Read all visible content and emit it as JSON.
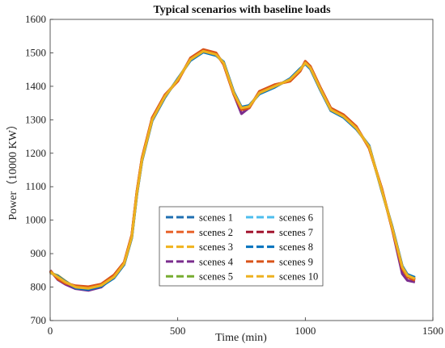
{
  "chart_data": {
    "type": "line",
    "title": "Typical scenarios with baseline loads",
    "xlabel": "Time (min)",
    "ylabel": "Power（10000 KW）",
    "xlim": [
      0,
      1500
    ],
    "ylim": [
      700,
      1600
    ],
    "x_ticks": [
      0,
      500,
      1000,
      1500
    ],
    "y_ticks": [
      700,
      800,
      900,
      1000,
      1100,
      1200,
      1300,
      1400,
      1500,
      1600
    ],
    "grid": false,
    "legend_position": "lower-center",
    "x": [
      0,
      30,
      60,
      100,
      150,
      200,
      250,
      290,
      320,
      340,
      360,
      400,
      450,
      500,
      550,
      600,
      650,
      680,
      720,
      750,
      780,
      820,
      880,
      940,
      980,
      1000,
      1020,
      1060,
      1100,
      1150,
      1200,
      1250,
      1300,
      1340,
      1380,
      1400,
      1430
    ],
    "series": [
      {
        "name": "scenes 1",
        "color": "#1f6fb2",
        "values": [
          845,
          830,
          815,
          800,
          795,
          805,
          830,
          870,
          950,
          1080,
          1180,
          1300,
          1370,
          1420,
          1480,
          1505,
          1495,
          1470,
          1380,
          1335,
          1340,
          1380,
          1400,
          1420,
          1450,
          1470,
          1455,
          1390,
          1330,
          1310,
          1275,
          1220,
          1090,
          980,
          860,
          835,
          825
        ]
      },
      {
        "name": "scenes 2",
        "color": "#e8622a",
        "values": [
          848,
          825,
          812,
          802,
          800,
          808,
          835,
          873,
          955,
          1085,
          1185,
          1305,
          1372,
          1418,
          1482,
          1507,
          1497,
          1468,
          1378,
          1333,
          1338,
          1382,
          1402,
          1418,
          1448,
          1472,
          1457,
          1392,
          1332,
          1312,
          1277,
          1218,
          1092,
          978,
          858,
          833,
          822
        ]
      },
      {
        "name": "scenes 3",
        "color": "#f0b21c",
        "values": [
          842,
          835,
          818,
          798,
          792,
          803,
          828,
          868,
          948,
          1078,
          1178,
          1298,
          1368,
          1422,
          1478,
          1503,
          1493,
          1472,
          1382,
          1337,
          1342,
          1378,
          1398,
          1422,
          1452,
          1468,
          1453,
          1388,
          1328,
          1308,
          1273,
          1222,
          1088,
          982,
          862,
          837,
          828
        ]
      },
      {
        "name": "scenes 4",
        "color": "#7b2d8e",
        "values": [
          850,
          822,
          808,
          795,
          790,
          800,
          832,
          872,
          952,
          1082,
          1182,
          1302,
          1374,
          1416,
          1484,
          1509,
          1499,
          1466,
          1376,
          1318,
          1336,
          1384,
          1404,
          1416,
          1446,
          1474,
          1459,
          1394,
          1334,
          1314,
          1279,
          1216,
          1094,
          976,
          840,
          820,
          815
        ]
      },
      {
        "name": "scenes 5",
        "color": "#77ac30",
        "values": [
          846,
          828,
          814,
          801,
          797,
          806,
          831,
          871,
          951,
          1081,
          1181,
          1301,
          1371,
          1419,
          1481,
          1506,
          1496,
          1469,
          1379,
          1334,
          1339,
          1381,
          1401,
          1419,
          1449,
          1471,
          1456,
          1391,
          1331,
          1311,
          1276,
          1219,
          1091,
          979,
          859,
          834,
          824
        ]
      },
      {
        "name": "scenes 6",
        "color": "#4dbeee",
        "values": [
          844,
          832,
          816,
          799,
          794,
          804,
          829,
          869,
          949,
          1079,
          1179,
          1299,
          1369,
          1421,
          1479,
          1504,
          1494,
          1471,
          1381,
          1336,
          1341,
          1379,
          1399,
          1421,
          1451,
          1469,
          1454,
          1389,
          1329,
          1309,
          1274,
          1221,
          1089,
          981,
          861,
          836,
          826
        ]
      },
      {
        "name": "scenes 7",
        "color": "#a2142f",
        "values": [
          847,
          827,
          813,
          803,
          798,
          807,
          833,
          872,
          953,
          1083,
          1183,
          1303,
          1373,
          1417,
          1483,
          1508,
          1498,
          1467,
          1377,
          1332,
          1337,
          1383,
          1403,
          1417,
          1447,
          1473,
          1458,
          1393,
          1333,
          1313,
          1278,
          1217,
          1093,
          977,
          857,
          832,
          823
        ]
      },
      {
        "name": "scenes 8",
        "color": "#0072bd",
        "values": [
          843,
          833,
          817,
          797,
          793,
          802,
          827,
          867,
          947,
          1077,
          1177,
          1297,
          1367,
          1423,
          1477,
          1502,
          1492,
          1473,
          1383,
          1338,
          1343,
          1377,
          1397,
          1423,
          1453,
          1467,
          1452,
          1387,
          1327,
          1307,
          1272,
          1223,
          1087,
          983,
          863,
          838,
          829
        ]
      },
      {
        "name": "scenes 9",
        "color": "#d95319",
        "values": [
          849,
          824,
          811,
          804,
          801,
          809,
          836,
          874,
          956,
          1086,
          1186,
          1306,
          1375,
          1415,
          1485,
          1510,
          1500,
          1465,
          1375,
          1330,
          1335,
          1385,
          1405,
          1415,
          1445,
          1475,
          1460,
          1395,
          1335,
          1315,
          1280,
          1215,
          1095,
          975,
          855,
          830,
          820
        ]
      },
      {
        "name": "scenes 10",
        "color": "#edb120",
        "values": [
          845,
          830,
          815,
          800,
          796,
          805,
          830,
          870,
          950,
          1080,
          1180,
          1300,
          1370,
          1420,
          1480,
          1505,
          1495,
          1470,
          1380,
          1335,
          1340,
          1380,
          1400,
          1420,
          1450,
          1470,
          1455,
          1390,
          1330,
          1310,
          1275,
          1220,
          1090,
          980,
          860,
          835,
          825
        ]
      }
    ]
  }
}
